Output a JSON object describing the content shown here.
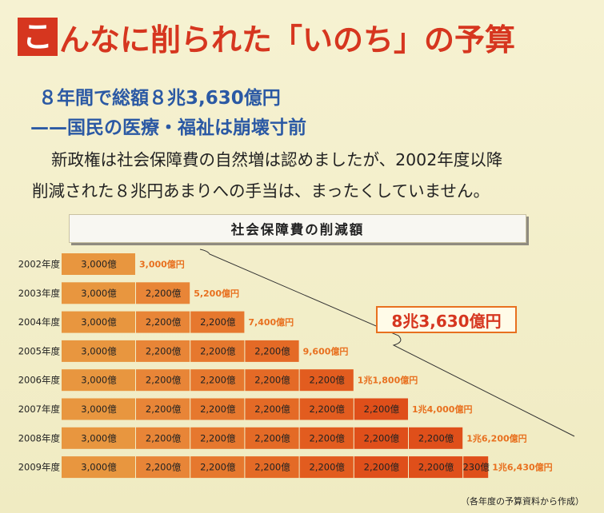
{
  "headline": {
    "first_char": "こ",
    "rest": "んなに削られた「いのち」の予算"
  },
  "subhead": {
    "line1": "８年間で総額８兆3,630億円",
    "line2": "——国民の医療・福祉は崩壊寸前"
  },
  "body": {
    "line1": "新政権は社会保障費の自然増は認めましたが、2002年度以降",
    "line2": "削減された８兆円あまりへの手当は、まったくしていません。"
  },
  "grand_total": "8兆3,630億円",
  "source_note": "（各年度の予算資料から作成）",
  "chart_data": {
    "type": "bar",
    "title": "社会保障費の削減額",
    "unit": "億円",
    "colors": [
      "#e8963f",
      "#e88537",
      "#e6782e",
      "#e46a26",
      "#e25c1f",
      "#df4f1a"
    ],
    "rows": [
      {
        "year": "2002年度",
        "segments": [
          {
            "value": 3000,
            "label": "3,000億"
          }
        ],
        "total_label": "3,000億円"
      },
      {
        "year": "2003年度",
        "segments": [
          {
            "value": 3000,
            "label": "3,000億"
          },
          {
            "value": 2200,
            "label": "2,200億"
          }
        ],
        "total_label": "5,200億円"
      },
      {
        "year": "2004年度",
        "segments": [
          {
            "value": 3000,
            "label": "3,000億"
          },
          {
            "value": 2200,
            "label": "2,200億"
          },
          {
            "value": 2200,
            "label": "2,200億"
          }
        ],
        "total_label": "7,400億円"
      },
      {
        "year": "2005年度",
        "segments": [
          {
            "value": 3000,
            "label": "3,000億"
          },
          {
            "value": 2200,
            "label": "2,200億"
          },
          {
            "value": 2200,
            "label": "2,200億"
          },
          {
            "value": 2200,
            "label": "2,200億"
          }
        ],
        "total_label": "9,600億円"
      },
      {
        "year": "2006年度",
        "segments": [
          {
            "value": 3000,
            "label": "3,000億"
          },
          {
            "value": 2200,
            "label": "2,200億"
          },
          {
            "value": 2200,
            "label": "2,200億"
          },
          {
            "value": 2200,
            "label": "2,200億"
          },
          {
            "value": 2200,
            "label": "2,200億"
          }
        ],
        "total_label": "1兆1,800億円"
      },
      {
        "year": "2007年度",
        "segments": [
          {
            "value": 3000,
            "label": "3,000億"
          },
          {
            "value": 2200,
            "label": "2,200億"
          },
          {
            "value": 2200,
            "label": "2,200億"
          },
          {
            "value": 2200,
            "label": "2,200億"
          },
          {
            "value": 2200,
            "label": "2,200億"
          },
          {
            "value": 2200,
            "label": "2,200億"
          }
        ],
        "total_label": "1兆4,000億円"
      },
      {
        "year": "2008年度",
        "segments": [
          {
            "value": 3000,
            "label": "3,000億"
          },
          {
            "value": 2200,
            "label": "2,200億"
          },
          {
            "value": 2200,
            "label": "2,200億"
          },
          {
            "value": 2200,
            "label": "2,200億"
          },
          {
            "value": 2200,
            "label": "2,200億"
          },
          {
            "value": 2200,
            "label": "2,200億"
          },
          {
            "value": 2200,
            "label": "2,200億"
          }
        ],
        "total_label": "1兆6,200億円"
      },
      {
        "year": "2009年度",
        "segments": [
          {
            "value": 3000,
            "label": "3,000億"
          },
          {
            "value": 2200,
            "label": "2,200億"
          },
          {
            "value": 2200,
            "label": "2,200億"
          },
          {
            "value": 2200,
            "label": "2,200億"
          },
          {
            "value": 2200,
            "label": "2,200億"
          },
          {
            "value": 2200,
            "label": "2,200億"
          },
          {
            "value": 2200,
            "label": "2,200億"
          },
          {
            "value": 230,
            "label": "230億"
          }
        ],
        "total_label": "1兆6,430億円"
      }
    ]
  }
}
